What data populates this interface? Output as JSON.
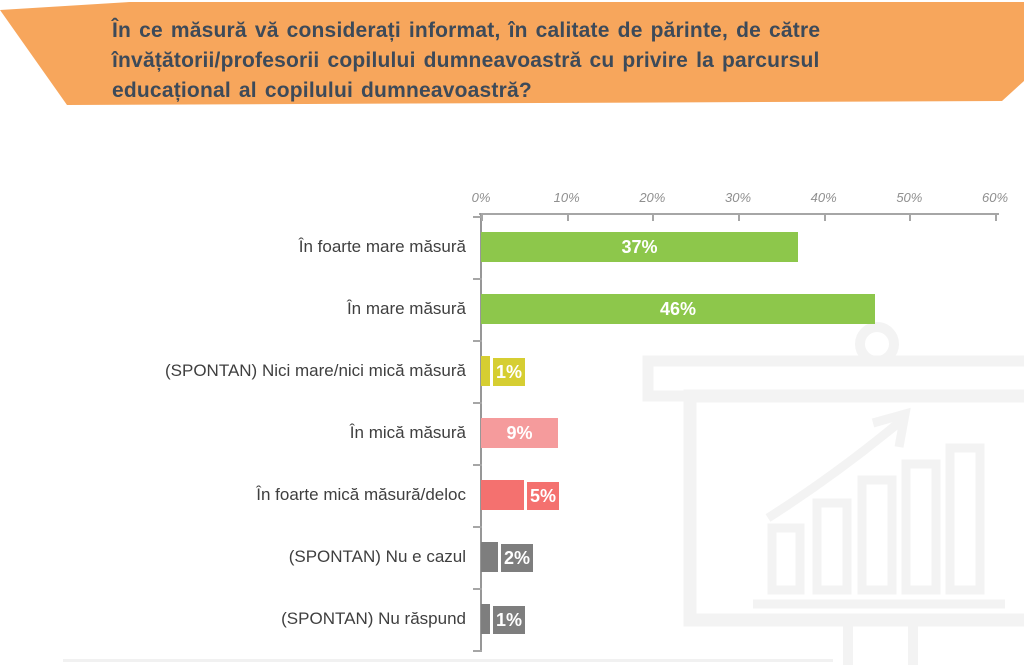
{
  "header": {
    "lines": [
      "În ce măsură vă considerați informat, în calitate de părinte, de către",
      "învățătorii/profesorii copilului dumneavoastră cu privire la parcursul",
      "educațional al copilului dumneavoastră?"
    ],
    "bg_color": "#F7A65C",
    "text_color": "#3D4A59"
  },
  "chart_data": {
    "type": "bar",
    "orientation": "horizontal",
    "title": "",
    "categories": [
      "În foarte mare măsură",
      "În mare măsură",
      "(SPONTAN) Nici mare/nici mică măsură",
      "În mică măsură",
      "În foarte mică măsură/deloc",
      "(SPONTAN) Nu e cazul",
      "(SPONTAN) Nu răspund"
    ],
    "values": [
      37,
      46,
      1,
      9,
      5,
      2,
      1
    ],
    "labels": [
      "37%",
      "46%",
      "1%",
      "9%",
      "5%",
      "2%",
      "1%"
    ],
    "colors": [
      "#8DC74B",
      "#8DC74B",
      "#D6CE32",
      "#F59B9C",
      "#F4716F",
      "#7E7E7E",
      "#7E7E7E"
    ],
    "xlabel": "",
    "ylabel": "",
    "xlim": [
      0,
      60
    ],
    "x_ticks": [
      "0%",
      "10%",
      "20%",
      "30%",
      "40%",
      "50%",
      "60%"
    ],
    "grid": false,
    "legend": false,
    "value_label_color": "#FFFFFF",
    "axis_color": "#A6A6A6"
  },
  "watermark": {
    "name": "presentation-board-chart-watermark",
    "color": "#F3F3F3"
  }
}
